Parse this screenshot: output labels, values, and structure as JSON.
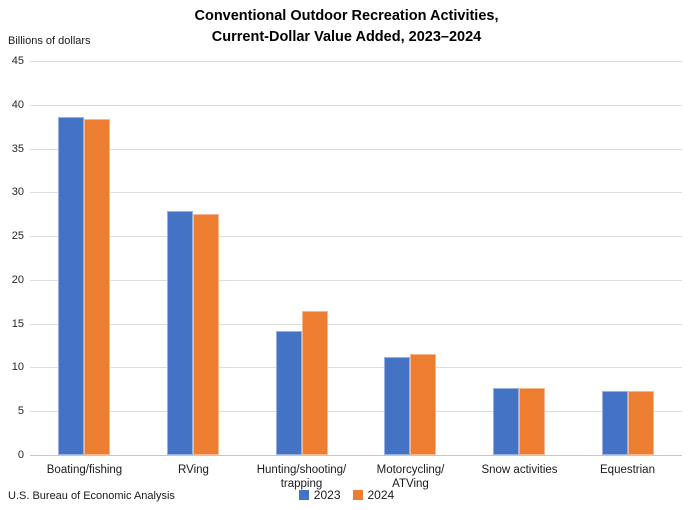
{
  "title": {
    "line1": "Conventional Outdoor Recreation Activities,",
    "line2": "Current-Dollar Value Added, 2023–2024"
  },
  "axis_unit_label": "Billions of dollars",
  "source_note": "U.S. Bureau of Economic Analysis",
  "colors": {
    "series_2023": "#4472C4",
    "series_2024": "#ED7D31",
    "gridline": "#DCDCDC"
  },
  "chart_data": {
    "type": "bar",
    "title": "Conventional Outdoor Recreation Activities, Current-Dollar Value Added, 2023–2024",
    "xlabel": "",
    "ylabel": "Billions of dollars",
    "ylim": [
      0,
      45
    ],
    "ytick_step": 5,
    "grid": true,
    "legend_position": "bottom",
    "categories": [
      "Boating/fishing",
      "RVing",
      "Hunting/shooting/trapping",
      "Motorcycling/ATVing",
      "Snow activities",
      "Equestrian"
    ],
    "category_label_lines": [
      [
        "Boating/fishing"
      ],
      [
        "RVing"
      ],
      [
        "Hunting/shooting/",
        "trapping"
      ],
      [
        "Motorcycling/",
        "ATVing"
      ],
      [
        "Snow activities"
      ],
      [
        "Equestrian"
      ]
    ],
    "series": [
      {
        "name": "2023",
        "color": "#4472C4",
        "values": [
          38.6,
          27.9,
          14.2,
          11.2,
          7.6,
          7.3
        ]
      },
      {
        "name": "2024",
        "color": "#ED7D31",
        "values": [
          38.4,
          27.5,
          16.5,
          11.5,
          7.7,
          7.3
        ]
      }
    ]
  }
}
